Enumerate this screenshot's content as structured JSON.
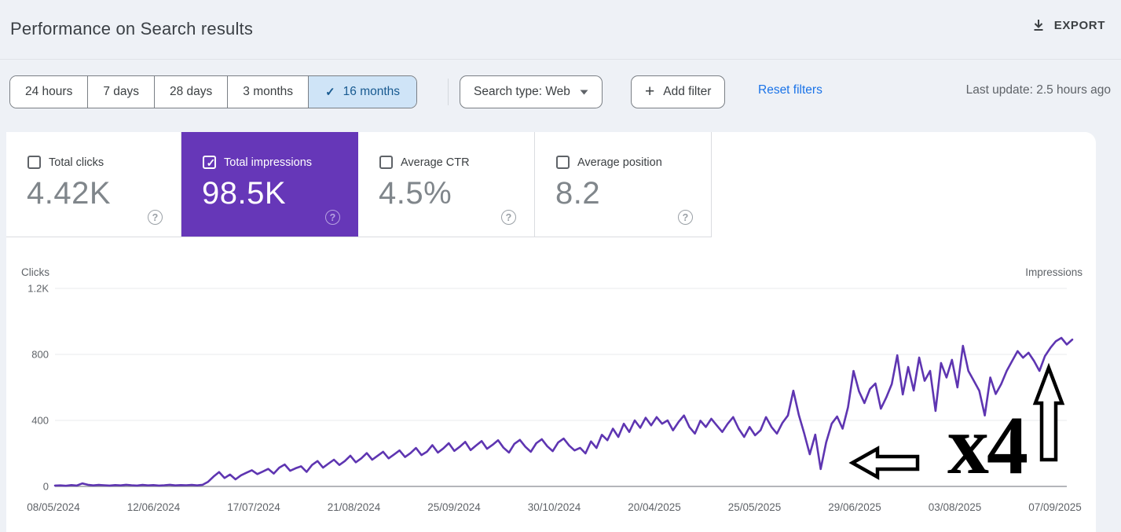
{
  "header": {
    "title": "Performance on Search results",
    "export_label": "EXPORT"
  },
  "toolbar": {
    "date_ranges": [
      {
        "label": "24 hours",
        "selected": false
      },
      {
        "label": "7 days",
        "selected": false
      },
      {
        "label": "28 days",
        "selected": false
      },
      {
        "label": "3 months",
        "selected": false
      },
      {
        "label": "16 months",
        "selected": true
      }
    ],
    "search_type_label": "Search type: Web",
    "add_filter_label": "Add filter",
    "reset_filters_label": "Reset filters",
    "last_update": "Last update: 2.5 hours ago"
  },
  "icons": {
    "check": "✓",
    "plus": "+",
    "question": "?"
  },
  "metrics": [
    {
      "label": "Total clicks",
      "value": "4.42K",
      "checked": false,
      "selected": false
    },
    {
      "label": "Total impressions",
      "value": "98.5K",
      "checked": true,
      "selected": true
    },
    {
      "label": "Average CTR",
      "value": "4.5%",
      "checked": false,
      "selected": false
    },
    {
      "label": "Average position",
      "value": "8.2",
      "checked": false,
      "selected": false
    }
  ],
  "chart_data": {
    "type": "line",
    "title": "",
    "left_axis_title": "Clicks",
    "right_axis_title": "Impressions",
    "ylim": [
      0,
      1200
    ],
    "grid": true,
    "legend_position": "none",
    "y_ticks": [
      {
        "label": "1.2K",
        "value": 1200
      },
      {
        "label": "800",
        "value": 800
      },
      {
        "label": "400",
        "value": 400
      },
      {
        "label": "0",
        "value": 0
      }
    ],
    "x_tick_labels": [
      "08/05/2024",
      "12/06/2024",
      "17/07/2024",
      "21/08/2024",
      "25/09/2024",
      "30/10/2024",
      "20/04/2025",
      "25/05/2025",
      "29/06/2025",
      "03/08/2025",
      "07/09/2025"
    ],
    "series": [
      {
        "name": "Total impressions",
        "color": "#5e35b1",
        "values": [
          5,
          6,
          4,
          8,
          5,
          18,
          10,
          6,
          9,
          7,
          5,
          8,
          6,
          10,
          7,
          5,
          9,
          6,
          8,
          5,
          7,
          10,
          6,
          8,
          7,
          9,
          6,
          10,
          28,
          60,
          87,
          51,
          72,
          43,
          67,
          83,
          98,
          75,
          90,
          106,
          78,
          114,
          133,
          95,
          110,
          122,
          88,
          130,
          154,
          114,
          138,
          162,
          130,
          154,
          186,
          146,
          170,
          202,
          162,
          186,
          210,
          170,
          194,
          218,
          178,
          202,
          233,
          190,
          210,
          250,
          205,
          230,
          262,
          215,
          240,
          270,
          220,
          248,
          275,
          228,
          252,
          280,
          235,
          205,
          258,
          282,
          240,
          210,
          262,
          286,
          244,
          214,
          266,
          290,
          248,
          218,
          234,
          200,
          273,
          233,
          313,
          280,
          350,
          300,
          380,
          330,
          400,
          355,
          416,
          370,
          420,
          380,
          400,
          340,
          390,
          430,
          360,
          320,
          398,
          360,
          410,
          370,
          330,
          380,
          420,
          350,
          300,
          360,
          310,
          340,
          420,
          360,
          320,
          385,
          430,
          580,
          433,
          320,
          195,
          314,
          105,
          267,
          380,
          424,
          350,
          480,
          700,
          576,
          505,
          590,
          624,
          471,
          540,
          620,
          795,
          557,
          724,
          581,
          781,
          640,
          700,
          457,
          748,
          660,
          767,
          600,
          852,
          700,
          640,
          580,
          430,
          660,
          560,
          620,
          700,
          760,
          820,
          780,
          810,
          760,
          700,
          790,
          840,
          880,
          900,
          860,
          890
        ]
      }
    ],
    "annotations": [
      {
        "type": "block-arrow-left",
        "target": "dip near 29/06/2025"
      },
      {
        "type": "text",
        "text": "x4"
      },
      {
        "type": "block-arrow-up",
        "target": "line end near 07/09/2025"
      }
    ]
  }
}
